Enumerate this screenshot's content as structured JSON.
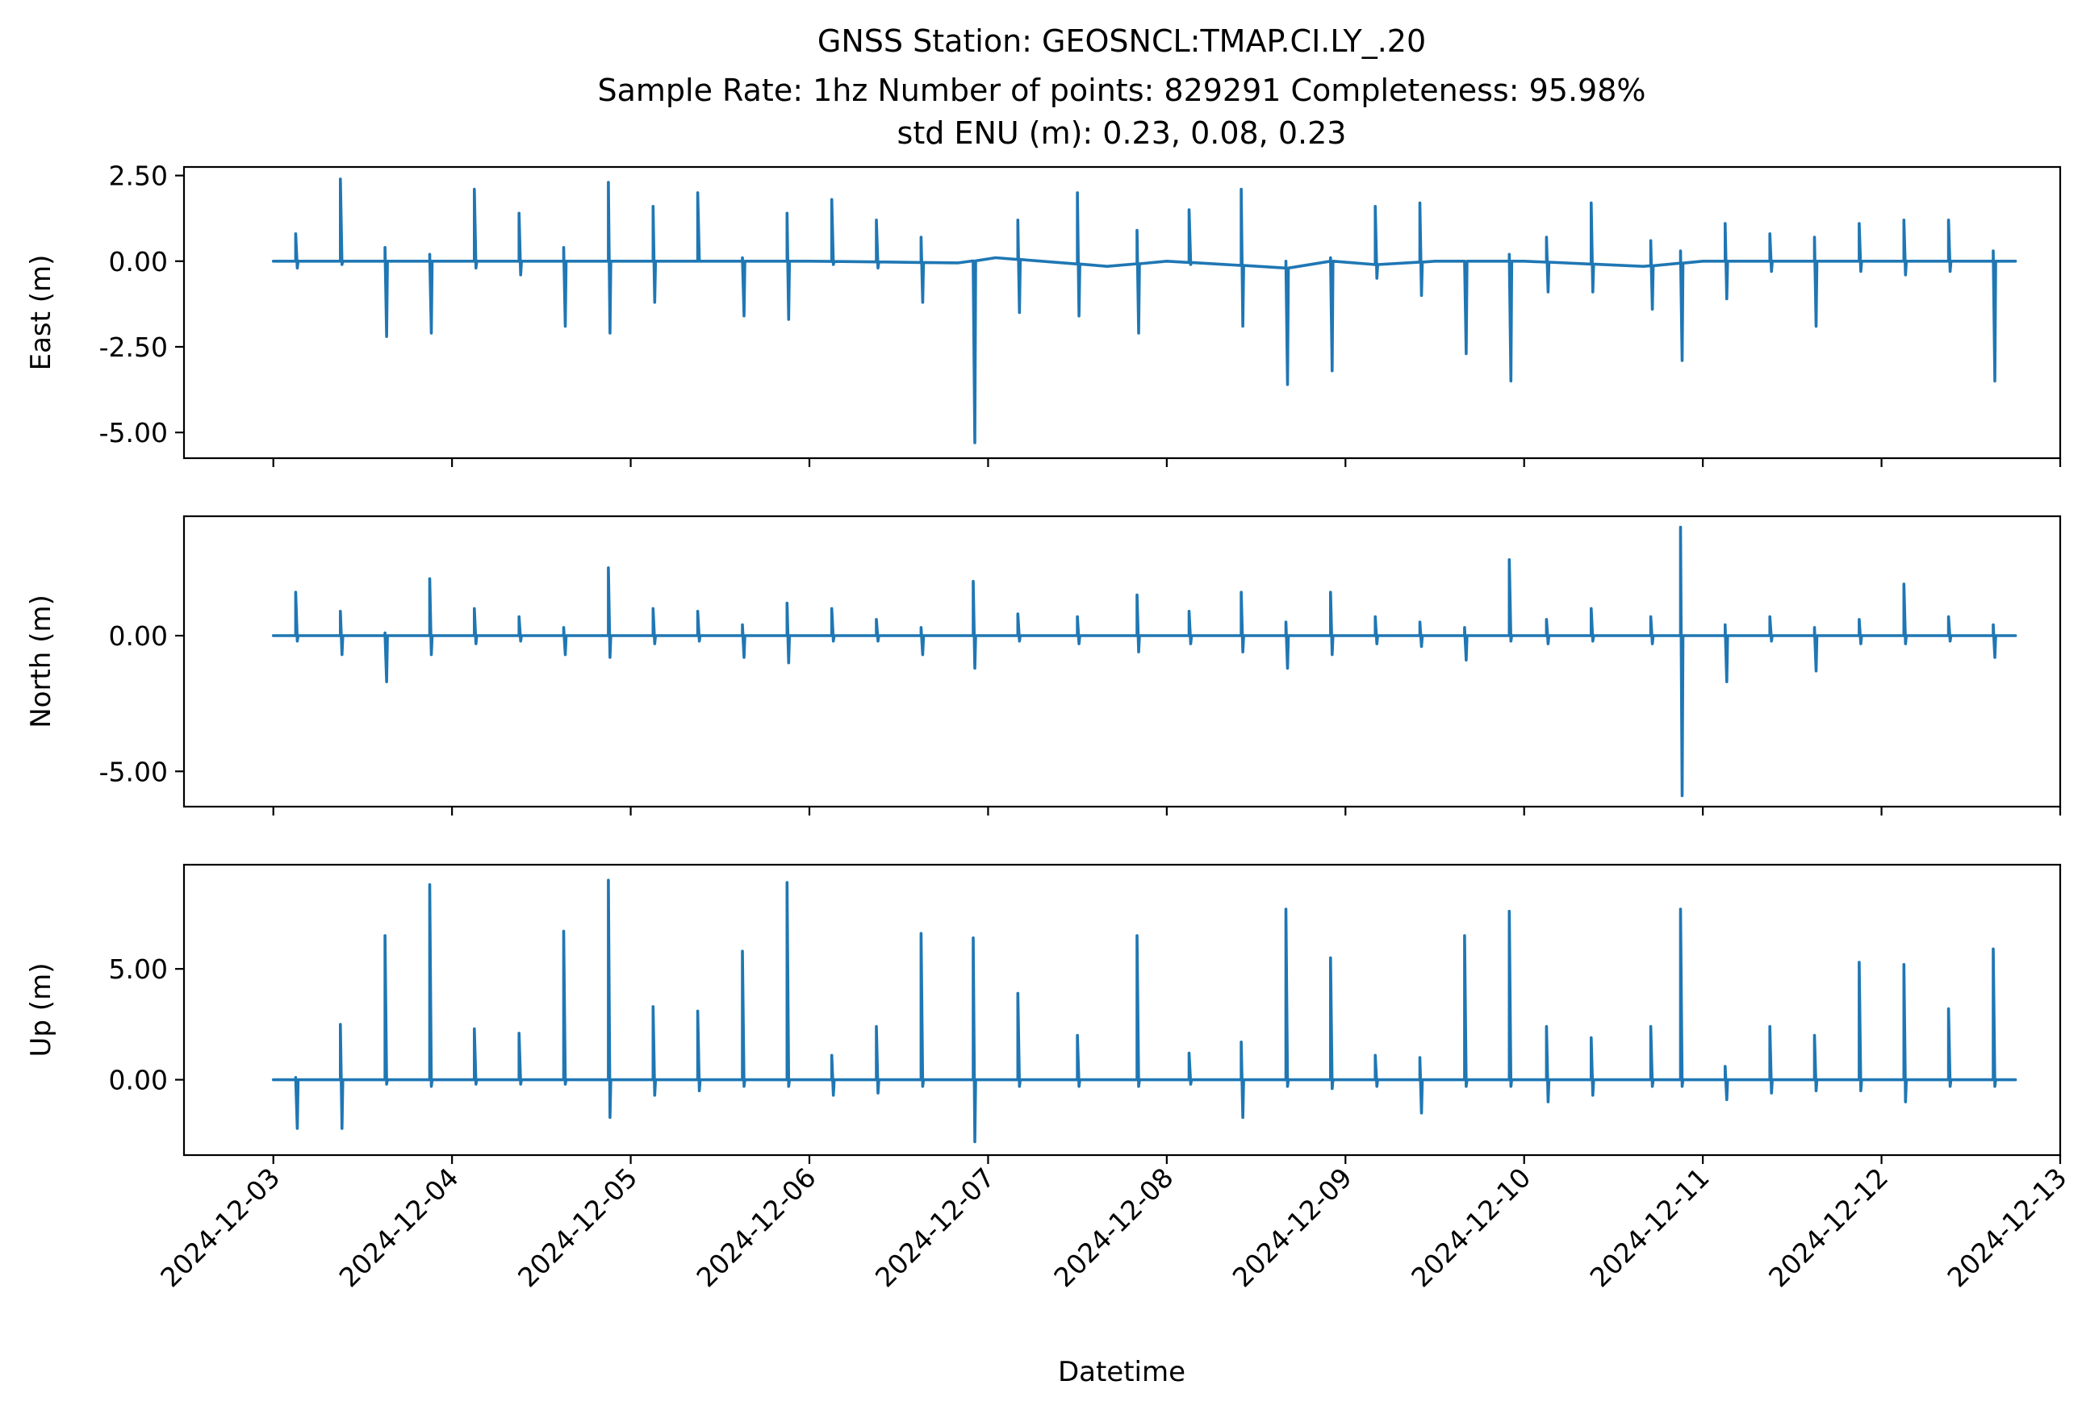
{
  "figure": {
    "title_lines": [
      "GNSS Station: GEOSNCL:TMAP.CI.LY_.20",
      "Sample Rate: 1hz   Number of points: 829291    Completeness:  95.98%",
      "std ENU (m):  0.23, 0.08, 0.23"
    ],
    "xlabel": "Datetime",
    "colors": {
      "series": "#1f77b4"
    }
  },
  "chart_data": [
    {
      "type": "line",
      "ylabel": "East (m)",
      "ylim": [
        -5.75,
        2.75
      ],
      "yticks": [
        "2.50",
        "0.00",
        "-2.50",
        "-5.00"
      ],
      "xlim": [
        "2024-12-02T12:00",
        "2024-12-13T00:00"
      ],
      "xticks": [
        "2024-12-03",
        "2024-12-04",
        "2024-12-05",
        "2024-12-06",
        "2024-12-07",
        "2024-12-08",
        "2024-12-09",
        "2024-12-10",
        "2024-12-11",
        "2024-12-12",
        "2024-12-13"
      ],
      "grid": false,
      "series": [
        {
          "baseline": [
            [
              "2024-12-03T00:00",
              0.0
            ],
            [
              "2024-12-04T00:00",
              0.0
            ],
            [
              "2024-12-05T00:00",
              0.0
            ],
            [
              "2024-12-06T00:00",
              0.0
            ],
            [
              "2024-12-06T20:00",
              -0.05
            ],
            [
              "2024-12-07T01:00",
              0.1
            ],
            [
              "2024-12-07T16:00",
              -0.15
            ],
            [
              "2024-12-08T00:00",
              0.0
            ],
            [
              "2024-12-08T16:00",
              -0.2
            ],
            [
              "2024-12-08T22:00",
              0.0
            ],
            [
              "2024-12-09T04:00",
              -0.1
            ],
            [
              "2024-12-09T12:00",
              0.0
            ],
            [
              "2024-12-10T00:00",
              0.0
            ],
            [
              "2024-12-10T16:00",
              -0.15
            ],
            [
              "2024-12-11T00:00",
              0.0
            ],
            [
              "2024-12-12T00:00",
              0.0
            ],
            [
              "2024-12-12T18:00",
              0.0
            ]
          ],
          "spikes": [
            [
              "2024-12-03T03:00",
              0.8,
              -0.2
            ],
            [
              "2024-12-03T09:00",
              2.4,
              -0.1
            ],
            [
              "2024-12-03T15:00",
              0.4,
              -2.2
            ],
            [
              "2024-12-03T21:00",
              0.2,
              -2.1
            ],
            [
              "2024-12-04T03:00",
              2.1,
              -0.2
            ],
            [
              "2024-12-04T09:00",
              1.4,
              -0.4
            ],
            [
              "2024-12-04T15:00",
              0.4,
              -1.9
            ],
            [
              "2024-12-04T21:00",
              2.3,
              -2.1
            ],
            [
              "2024-12-05T03:00",
              1.6,
              -1.2
            ],
            [
              "2024-12-05T09:00",
              2.0,
              0.0
            ],
            [
              "2024-12-05T15:00",
              0.1,
              -1.6
            ],
            [
              "2024-12-05T21:00",
              1.4,
              -1.7
            ],
            [
              "2024-12-06T03:00",
              1.8,
              -0.1
            ],
            [
              "2024-12-06T09:00",
              1.2,
              -0.2
            ],
            [
              "2024-12-06T15:00",
              0.7,
              -1.2
            ],
            [
              "2024-12-06T22:00",
              -0.2,
              -5.3
            ],
            [
              "2024-12-07T04:00",
              1.2,
              -1.5
            ],
            [
              "2024-12-07T12:00",
              2.0,
              -1.6
            ],
            [
              "2024-12-07T20:00",
              0.9,
              -2.1
            ],
            [
              "2024-12-08T03:00",
              1.5,
              -0.1
            ],
            [
              "2024-12-08T10:00",
              2.1,
              -1.9
            ],
            [
              "2024-12-08T16:00",
              0.0,
              -3.6
            ],
            [
              "2024-12-08T22:00",
              0.1,
              -3.2
            ],
            [
              "2024-12-09T04:00",
              1.6,
              -0.5
            ],
            [
              "2024-12-09T10:00",
              1.7,
              -1.0
            ],
            [
              "2024-12-09T16:00",
              0.0,
              -2.7
            ],
            [
              "2024-12-09T22:00",
              0.2,
              -3.5
            ],
            [
              "2024-12-10T03:00",
              0.7,
              -0.9
            ],
            [
              "2024-12-10T09:00",
              1.7,
              -0.9
            ],
            [
              "2024-12-10T17:00",
              0.6,
              -1.4
            ],
            [
              "2024-12-10T21:00",
              0.3,
              -2.9
            ],
            [
              "2024-12-11T03:00",
              1.1,
              -1.1
            ],
            [
              "2024-12-11T09:00",
              0.8,
              -0.3
            ],
            [
              "2024-12-11T15:00",
              0.7,
              -1.9
            ],
            [
              "2024-12-11T21:00",
              1.1,
              -0.3
            ],
            [
              "2024-12-12T03:00",
              1.2,
              -0.4
            ],
            [
              "2024-12-12T09:00",
              1.2,
              -0.3
            ],
            [
              "2024-12-12T15:00",
              0.3,
              -3.5
            ]
          ]
        }
      ]
    },
    {
      "type": "line",
      "ylabel": "North (m)",
      "ylim": [
        -6.3,
        4.4
      ],
      "yticks": [
        "0.00",
        "-5.00"
      ],
      "xlim": [
        "2024-12-02T12:00",
        "2024-12-13T00:00"
      ],
      "xticks": [
        "2024-12-03",
        "2024-12-04",
        "2024-12-05",
        "2024-12-06",
        "2024-12-07",
        "2024-12-08",
        "2024-12-09",
        "2024-12-10",
        "2024-12-11",
        "2024-12-12",
        "2024-12-13"
      ],
      "grid": false,
      "series": [
        {
          "baseline": [
            [
              "2024-12-03T00:00",
              0.0
            ],
            [
              "2024-12-12T18:00",
              0.0
            ]
          ],
          "spikes": [
            [
              "2024-12-03T03:00",
              1.6,
              -0.2
            ],
            [
              "2024-12-03T09:00",
              0.9,
              -0.7
            ],
            [
              "2024-12-03T15:00",
              0.1,
              -1.7
            ],
            [
              "2024-12-03T21:00",
              2.1,
              -0.7
            ],
            [
              "2024-12-04T03:00",
              1.0,
              -0.3
            ],
            [
              "2024-12-04T09:00",
              0.7,
              -0.2
            ],
            [
              "2024-12-04T15:00",
              0.3,
              -0.7
            ],
            [
              "2024-12-04T21:00",
              2.5,
              -0.8
            ],
            [
              "2024-12-05T03:00",
              1.0,
              -0.3
            ],
            [
              "2024-12-05T09:00",
              0.9,
              -0.2
            ],
            [
              "2024-12-05T15:00",
              0.4,
              -0.8
            ],
            [
              "2024-12-05T21:00",
              1.2,
              -1.0
            ],
            [
              "2024-12-06T03:00",
              1.0,
              -0.2
            ],
            [
              "2024-12-06T09:00",
              0.6,
              -0.2
            ],
            [
              "2024-12-06T15:00",
              0.3,
              -0.7
            ],
            [
              "2024-12-06T22:00",
              2.0,
              -1.2
            ],
            [
              "2024-12-07T04:00",
              0.8,
              -0.2
            ],
            [
              "2024-12-07T12:00",
              0.7,
              -0.3
            ],
            [
              "2024-12-07T20:00",
              1.5,
              -0.6
            ],
            [
              "2024-12-08T03:00",
              0.9,
              -0.3
            ],
            [
              "2024-12-08T10:00",
              1.6,
              -0.6
            ],
            [
              "2024-12-08T16:00",
              0.5,
              -1.2
            ],
            [
              "2024-12-08T22:00",
              1.6,
              -0.7
            ],
            [
              "2024-12-09T04:00",
              0.7,
              -0.3
            ],
            [
              "2024-12-09T10:00",
              0.5,
              -0.4
            ],
            [
              "2024-12-09T16:00",
              0.3,
              -0.9
            ],
            [
              "2024-12-09T22:00",
              2.8,
              -0.2
            ],
            [
              "2024-12-10T03:00",
              0.6,
              -0.3
            ],
            [
              "2024-12-10T09:00",
              1.0,
              -0.2
            ],
            [
              "2024-12-10T17:00",
              0.7,
              -0.3
            ],
            [
              "2024-12-10T21:00",
              4.0,
              -5.9
            ],
            [
              "2024-12-11T03:00",
              0.4,
              -1.7
            ],
            [
              "2024-12-11T09:00",
              0.7,
              -0.2
            ],
            [
              "2024-12-11T15:00",
              0.3,
              -1.3
            ],
            [
              "2024-12-11T21:00",
              0.6,
              -0.3
            ],
            [
              "2024-12-12T03:00",
              1.9,
              -0.3
            ],
            [
              "2024-12-12T09:00",
              0.7,
              -0.2
            ],
            [
              "2024-12-12T15:00",
              0.4,
              -0.8
            ]
          ]
        }
      ]
    },
    {
      "type": "line",
      "ylabel": "Up (m)",
      "ylim": [
        -3.4,
        9.7
      ],
      "yticks": [
        "5.00",
        "0.00"
      ],
      "xlim": [
        "2024-12-02T12:00",
        "2024-12-13T00:00"
      ],
      "xticks": [
        "2024-12-03",
        "2024-12-04",
        "2024-12-05",
        "2024-12-06",
        "2024-12-07",
        "2024-12-08",
        "2024-12-09",
        "2024-12-10",
        "2024-12-11",
        "2024-12-12",
        "2024-12-13"
      ],
      "grid": false,
      "series": [
        {
          "baseline": [
            [
              "2024-12-03T00:00",
              0.0
            ],
            [
              "2024-12-12T18:00",
              0.0
            ]
          ],
          "spikes": [
            [
              "2024-12-03T03:00",
              0.1,
              -2.2
            ],
            [
              "2024-12-03T09:00",
              2.5,
              -2.2
            ],
            [
              "2024-12-03T15:00",
              6.5,
              -0.2
            ],
            [
              "2024-12-03T21:00",
              8.8,
              -0.3
            ],
            [
              "2024-12-04T03:00",
              2.3,
              -0.2
            ],
            [
              "2024-12-04T09:00",
              2.1,
              -0.2
            ],
            [
              "2024-12-04T15:00",
              6.7,
              -0.2
            ],
            [
              "2024-12-04T21:00",
              9.0,
              -1.7
            ],
            [
              "2024-12-05T03:00",
              3.3,
              -0.7
            ],
            [
              "2024-12-05T09:00",
              3.1,
              -0.5
            ],
            [
              "2024-12-05T15:00",
              5.8,
              -0.3
            ],
            [
              "2024-12-05T21:00",
              8.9,
              -0.3
            ],
            [
              "2024-12-06T03:00",
              1.1,
              -0.7
            ],
            [
              "2024-12-06T09:00",
              2.4,
              -0.6
            ],
            [
              "2024-12-06T15:00",
              6.6,
              -0.3
            ],
            [
              "2024-12-06T22:00",
              6.4,
              -2.8
            ],
            [
              "2024-12-07T04:00",
              3.9,
              -0.3
            ],
            [
              "2024-12-07T12:00",
              2.0,
              -0.3
            ],
            [
              "2024-12-07T20:00",
              6.5,
              -0.3
            ],
            [
              "2024-12-08T03:00",
              1.2,
              -0.2
            ],
            [
              "2024-12-08T10:00",
              1.7,
              -1.7
            ],
            [
              "2024-12-08T16:00",
              7.7,
              -0.3
            ],
            [
              "2024-12-08T22:00",
              5.5,
              -0.4
            ],
            [
              "2024-12-09T04:00",
              1.1,
              -0.3
            ],
            [
              "2024-12-09T10:00",
              1.0,
              -1.5
            ],
            [
              "2024-12-09T16:00",
              6.5,
              -0.3
            ],
            [
              "2024-12-09T22:00",
              7.6,
              -0.3
            ],
            [
              "2024-12-10T03:00",
              2.4,
              -1.0
            ],
            [
              "2024-12-10T09:00",
              1.9,
              -0.7
            ],
            [
              "2024-12-10T17:00",
              2.4,
              -0.3
            ],
            [
              "2024-12-10T21:00",
              7.7,
              -0.3
            ],
            [
              "2024-12-11T03:00",
              0.6,
              -0.9
            ],
            [
              "2024-12-11T09:00",
              2.4,
              -0.6
            ],
            [
              "2024-12-11T15:00",
              2.0,
              -0.5
            ],
            [
              "2024-12-11T21:00",
              5.3,
              -0.5
            ],
            [
              "2024-12-12T03:00",
              5.2,
              -1.0
            ],
            [
              "2024-12-12T09:00",
              3.2,
              -0.3
            ],
            [
              "2024-12-12T15:00",
              5.9,
              -0.3
            ]
          ]
        }
      ]
    }
  ]
}
